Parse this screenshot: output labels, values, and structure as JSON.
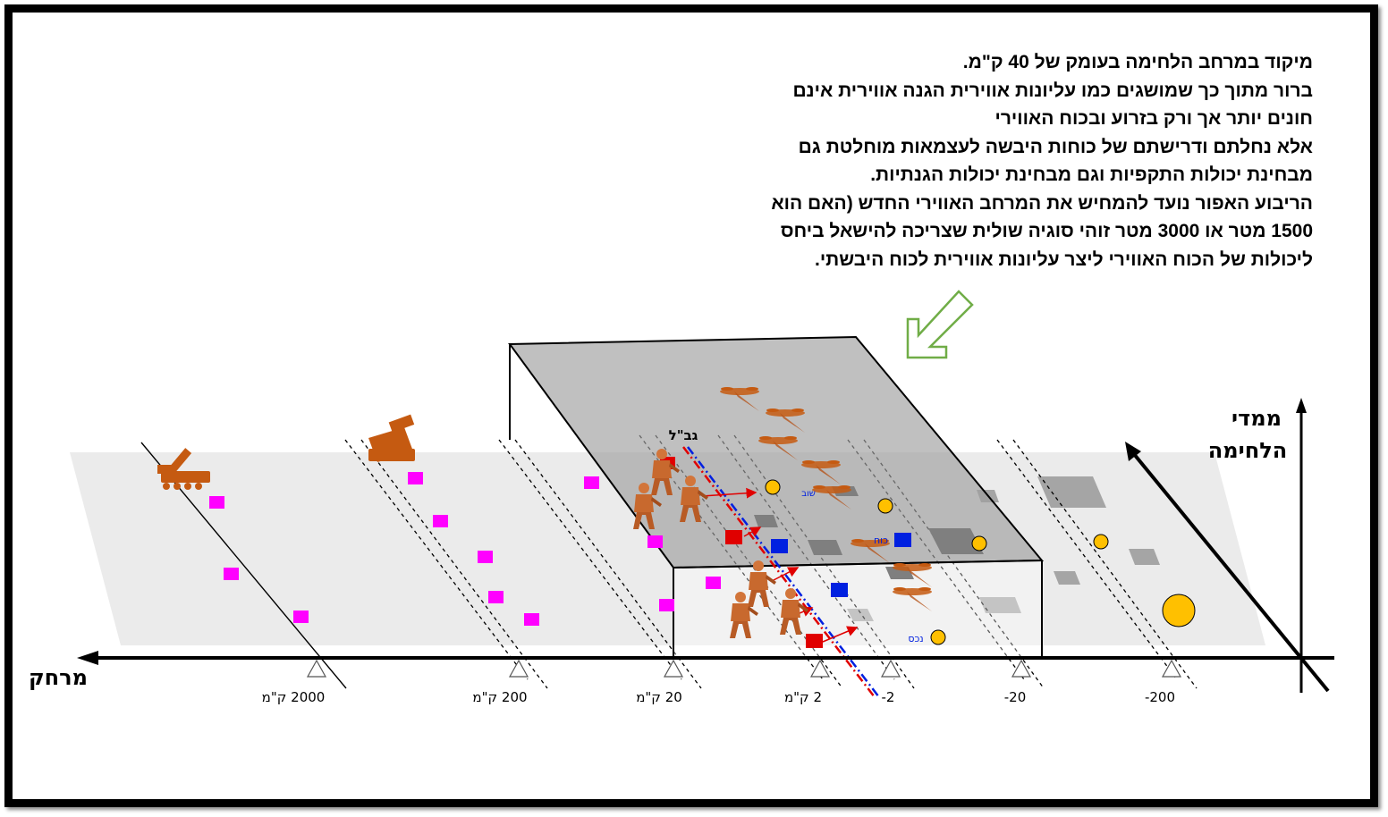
{
  "paragraph": [
    "מיקוד במרחב הלחימה בעומק של 40 ק\"מ.",
    "ברור מתוך כך שמושגים כמו עליונות אווירית הגנה אווירית אינם",
    "חונים יותר אך ורק בזרוע ובכוח האווירי",
    "אלא נחלתם ודרישתם של כוחות היבשה לעצמאות מוחלטת גם",
    "מבחינת יכולות התקפיות וגם מבחינת יכולות הגנתיות.",
    "הריבוע האפור נועד להמחיש את המרחב האווירי החדש (האם הוא",
    "1500 מטר או 3000 מטר זוהי סוגיה שולית שצריכה להישאל ביחס",
    "ליכולות של הכוח האווירי ליצר עליונות אווירית לכוח היבשתי."
  ],
  "axis": {
    "distance_label": "מרחק",
    "dimensions_label": [
      "ממדי",
      "הלחימה"
    ]
  },
  "ticks": [
    {
      "label": "2000 ק\"מ"
    },
    {
      "label": "200 ק\"מ"
    },
    {
      "label": "20 ק\"מ"
    },
    {
      "label": "2 ק\"מ"
    },
    {
      "label": "-2"
    },
    {
      "label": "-20"
    },
    {
      "label": "-200"
    }
  ],
  "border_label": "גב\"ל",
  "small_labels": {
    "a": "נכס",
    "b": "כוח",
    "c": "שוב"
  },
  "colors": {
    "ground": "#ebebeb",
    "airspace": "#a9a9a9",
    "magenta": "#ff00ff",
    "red": "#e00000",
    "blue": "#0020e0",
    "yellow": "#ffc000",
    "orange": "#c55a11",
    "arrow_green": "#70ad47"
  }
}
